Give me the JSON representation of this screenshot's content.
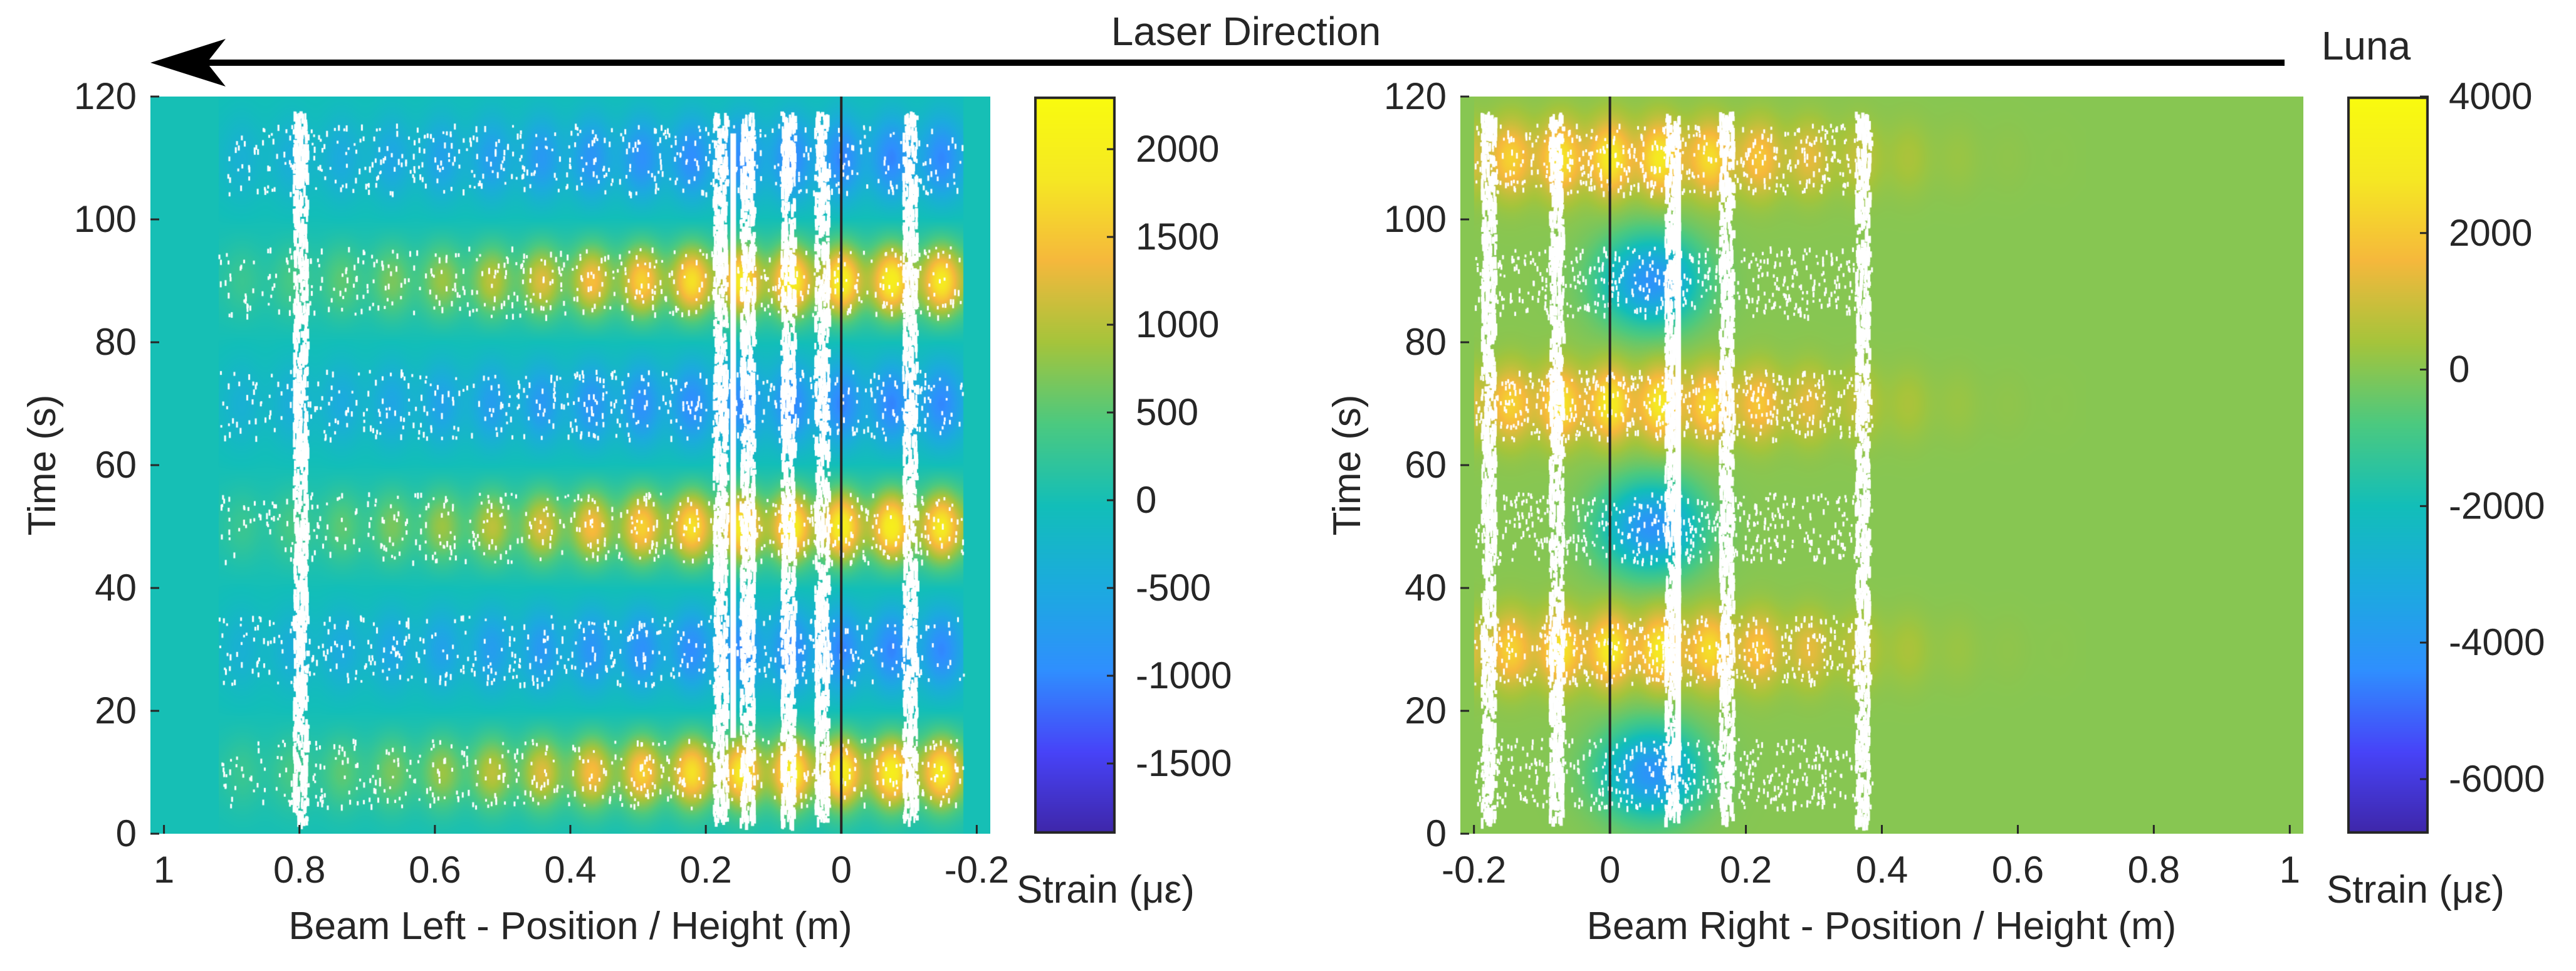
{
  "figure": {
    "laser_label": "Laser Direction",
    "system_label": "Luna"
  },
  "colors": {
    "parula": [
      "#3e26a8",
      "#4743f8",
      "#2f8ffe",
      "#1caadf",
      "#12beb9",
      "#4bc980",
      "#a5c43b",
      "#f5b83c",
      "#f5e823",
      "#f9fb0e"
    ],
    "axis_line": "#262626",
    "gap": "#ffffff"
  },
  "chart_data": [
    {
      "type": "heatmap",
      "id": "left",
      "xlabel": "Beam Left - Position / Height (m)",
      "ylabel": "Time (s)",
      "colorbar_label": "Strain (με)",
      "xlim": [
        1.02,
        -0.22
      ],
      "ylim": [
        0,
        120
      ],
      "xticks": [
        1,
        0.8,
        0.6,
        0.4,
        0.2,
        0,
        -0.2
      ],
      "xtick_labels": [
        "1",
        "0.8",
        "0.6",
        "0.4",
        "0.2",
        "0",
        "-0.2"
      ],
      "yticks": [
        0,
        20,
        40,
        60,
        80,
        100,
        120
      ],
      "ytick_labels": [
        "0",
        "20",
        "40",
        "60",
        "80",
        "100",
        "120"
      ],
      "clim": [
        -1900,
        2300
      ],
      "cbar_ticks": [
        -1500,
        -1000,
        -500,
        0,
        500,
        1000,
        1500,
        2000
      ],
      "cbar_tick_labels": [
        "-1500",
        "-1000",
        "-500",
        "0",
        "500",
        "1000",
        "1500",
        "2000"
      ],
      "vertical_line_x": 0,
      "baseline": 0,
      "positive_peaks_s": [
        10,
        50,
        90
      ],
      "negative_peaks_s": [
        30,
        70,
        110
      ],
      "positive_amplitude": 2000,
      "negative_amplitude": -1300,
      "peak_position_m": 0,
      "active_range_m": [
        0.92,
        -0.18
      ],
      "white_bands_m": [
        0.8,
        0.18,
        0.14,
        0.08,
        0.03,
        -0.1
      ],
      "white_line_m": [
        0.16
      ]
    },
    {
      "type": "heatmap",
      "id": "right",
      "xlabel": "Beam Right - Position / Height (m)",
      "ylabel": "Time (s)",
      "colorbar_label": "Strain (με)",
      "xlim": [
        -0.22,
        1.02
      ],
      "ylim": [
        0,
        120
      ],
      "xticks": [
        -0.2,
        0,
        0.2,
        0.4,
        0.6,
        0.8,
        1
      ],
      "xtick_labels": [
        "-0.2",
        "0",
        "0.2",
        "0.4",
        "0.6",
        "0.8",
        "1"
      ],
      "yticks": [
        0,
        20,
        40,
        60,
        80,
        100,
        120
      ],
      "ytick_labels": [
        "0",
        "20",
        "40",
        "60",
        "80",
        "100",
        "120"
      ],
      "clim": [
        -6800,
        4000
      ],
      "cbar_ticks": [
        -6000,
        -4000,
        -2000,
        0,
        2000,
        4000
      ],
      "cbar_tick_labels": [
        "-6000",
        "-4000",
        "-2000",
        "0",
        "2000",
        "4000"
      ],
      "vertical_line_x": 0,
      "baseline": 0,
      "positive_peaks_s": [
        30,
        70,
        110
      ],
      "negative_peaks_s": [
        10,
        50,
        90
      ],
      "positive_amplitude": 3000,
      "negative_amplitude": -4200,
      "peak_position_m": 0.02,
      "negative_position_m": 0.06,
      "active_range_m": [
        -0.2,
        0.7
      ],
      "white_bands_m": [
        -0.18,
        -0.08,
        0.09,
        0.17,
        0.37
      ],
      "white_line_m": [
        0.1
      ]
    }
  ]
}
